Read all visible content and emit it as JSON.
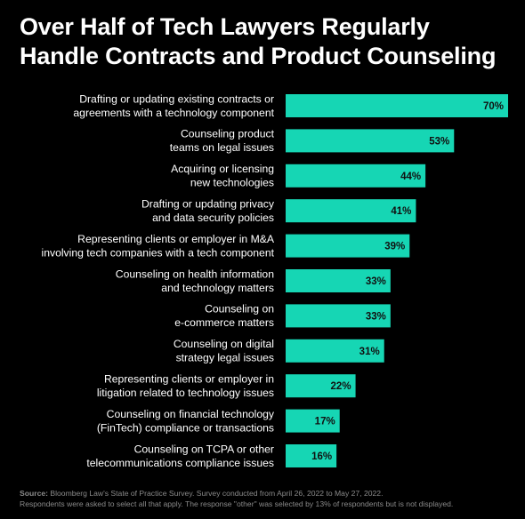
{
  "colors": {
    "background": "#000000",
    "bar": "#16d6b4",
    "text": "#ffffff",
    "value_text": "#111111",
    "footnote": "#8a8a8a"
  },
  "title_lines": [
    "Over Half of Tech Lawyers Regularly",
    "Handle Contracts and Product Counseling"
  ],
  "footnote": {
    "source_label": "Source:",
    "source_text": "Bloomberg Law's State of Practice Survey. Survey conducted from April 26, 2022 to May 27, 2022.",
    "note": "Respondents were asked to select all that apply. The response \"other\" was selected by 13% of respondents but is not displayed."
  },
  "chart_data": {
    "type": "bar",
    "orientation": "horizontal",
    "title": "Over Half of Tech Lawyers Regularly Handle Contracts and Product Counseling",
    "xlim": [
      0,
      70
    ],
    "grid": false,
    "categories": [
      [
        "Drafting or updating existing contracts or",
        "agreements with a technology component"
      ],
      [
        "Counseling product",
        "teams on legal issues"
      ],
      [
        "Acquiring or licensing",
        "new technologies"
      ],
      [
        "Drafting or updating privacy",
        "and data security policies"
      ],
      [
        "Representing clients or employer in M&A",
        "involving tech companies with a tech component"
      ],
      [
        "Counseling on health information",
        "and technology matters"
      ],
      [
        "Counseling on",
        "e-commerce matters"
      ],
      [
        "Counseling on digital",
        "strategy legal issues"
      ],
      [
        "Representing clients or employer in",
        "litigation related to technology issues"
      ],
      [
        "Counseling on financial technology",
        "(FinTech) compliance or transactions"
      ],
      [
        "Counseling on TCPA or other",
        "telecommunications compliance issues"
      ]
    ],
    "values": [
      70,
      53,
      44,
      41,
      39,
      33,
      33,
      31,
      22,
      17,
      16
    ],
    "value_labels": [
      "70%",
      "53%",
      "44%",
      "41%",
      "39%",
      "33%",
      "33%",
      "31%",
      "22%",
      "17%",
      "16%"
    ]
  }
}
